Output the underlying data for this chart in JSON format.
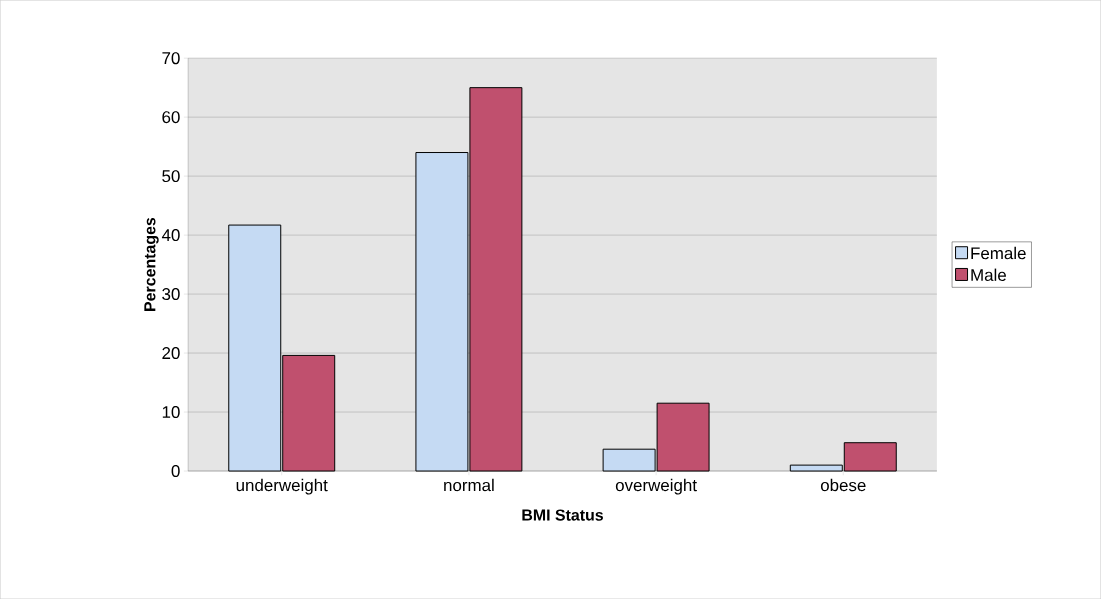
{
  "chart_data": {
    "type": "bar",
    "xlabel": "BMI Status",
    "ylabel": "Percentages",
    "categories": [
      "underweight",
      "normal",
      "overweight",
      "obese"
    ],
    "series": [
      {
        "name": "Female",
        "color": "#c5daf3",
        "values": [
          41.7,
          54,
          3.7,
          1.0
        ]
      },
      {
        "name": "Male",
        "color": "#c0506e",
        "values": [
          19.6,
          65,
          11.5,
          4.8
        ]
      }
    ],
    "ylim": [
      0,
      70
    ],
    "yticks": [
      0,
      10,
      20,
      30,
      40,
      50,
      60,
      70
    ],
    "grid": "y",
    "legend": "right"
  }
}
